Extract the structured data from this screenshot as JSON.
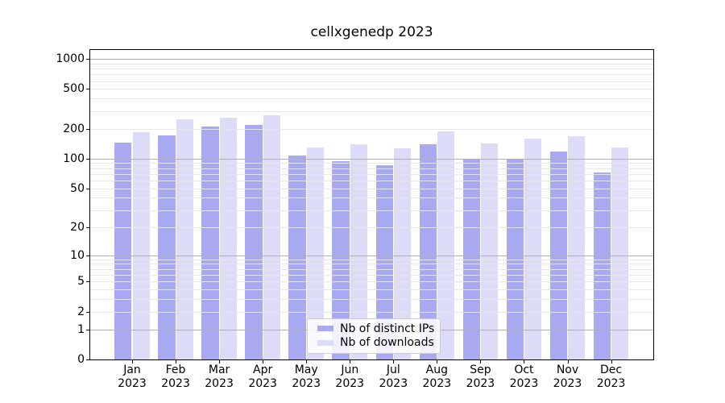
{
  "chart_data": {
    "type": "bar",
    "title": "cellxgenedp 2023",
    "categories": [
      "Jan 2023",
      "Feb 2023",
      "Mar 2023",
      "Apr 2023",
      "May 2023",
      "Jun 2023",
      "Jul 2023",
      "Aug 2023",
      "Sep 2023",
      "Oct 2023",
      "Nov 2023",
      "Dec 2023"
    ],
    "series": [
      {
        "name": "Nb of distinct IPs",
        "color": "#a9a9f2",
        "values": [
          145,
          171,
          212,
          218,
          108,
          95,
          86,
          140,
          100,
          97,
          118,
          73
        ]
      },
      {
        "name": "Nb of downloads",
        "color": "#dcdcf9",
        "values": [
          184,
          248,
          260,
          272,
          130,
          139,
          127,
          189,
          142,
          160,
          167,
          129
        ]
      }
    ],
    "xlabel": "",
    "ylabel": "",
    "yscale": "log1p",
    "ylim": [
      0,
      1230
    ],
    "yticks": [
      0,
      1,
      2,
      5,
      10,
      20,
      50,
      100,
      200,
      500,
      1000
    ],
    "grid": "horizontal major and minor",
    "legend_position": "lower center"
  },
  "colors": {
    "major_grid": "#b0b0b0",
    "minor_grid": "#e7e7e7",
    "axis": "#000000",
    "background": "#ffffff",
    "legend_border": "#cccccc"
  }
}
